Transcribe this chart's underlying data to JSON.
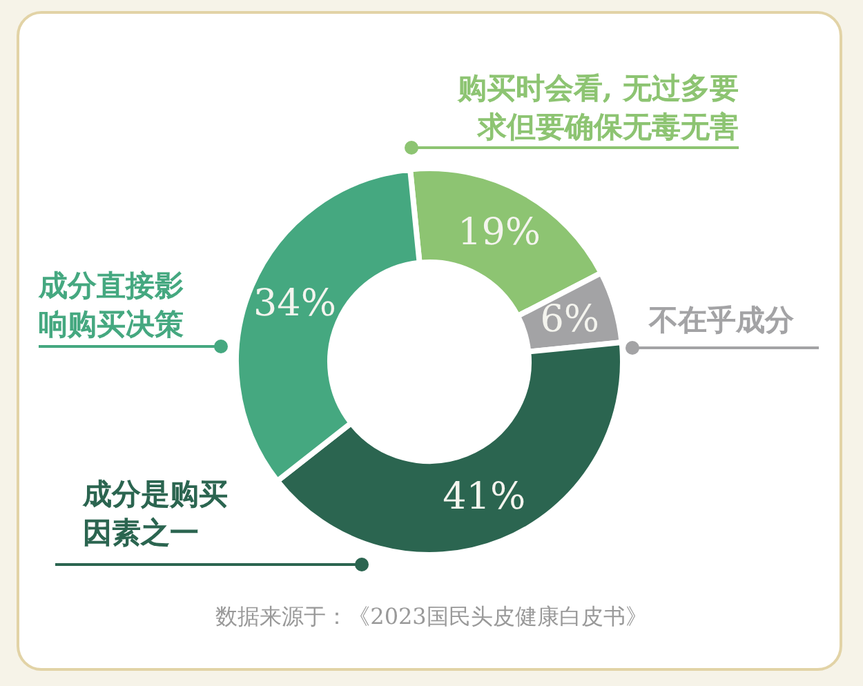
{
  "chart_data": {
    "type": "donut",
    "categories": [
      "购买时会看, 无过多要求但要确保无毒无害",
      "不在乎成分",
      "成分是购买因素之一",
      "成分直接影响购买决策"
    ],
    "values": [
      19,
      6,
      41,
      34
    ],
    "colors": [
      "#8dc472",
      "#a3a3a5",
      "#2b6550",
      "#45a880"
    ],
    "value_labels": [
      "19%",
      "6%",
      "41%",
      "34%"
    ],
    "legend": false,
    "annotations": [
      "数据来源于：《2023国民头皮健康白皮书》"
    ]
  }
}
